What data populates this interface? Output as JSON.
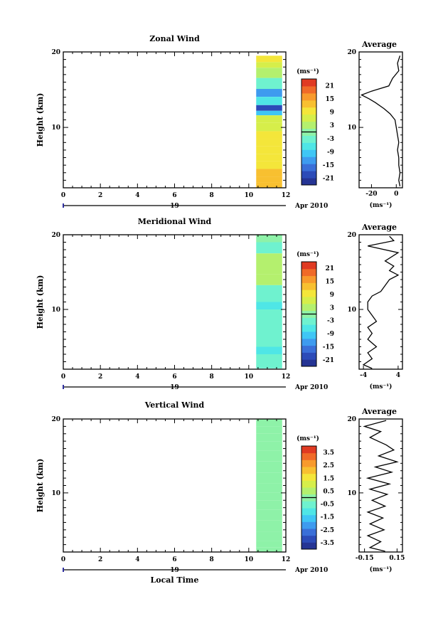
{
  "panels": [
    {
      "title": "Zonal Wind",
      "ylabel": "Height (km)",
      "yticks": [
        "20",
        "10"
      ],
      "xticks": [
        "0",
        "2",
        "4",
        "6",
        "8",
        "10",
        "12"
      ],
      "date_day": "19",
      "date_month": "Apr 2010",
      "colorbar_unit": "(ms⁻¹)",
      "colorbar_ticks": [
        "21",
        "15",
        "9",
        "3",
        "-3",
        "-9",
        "-15",
        "-21"
      ],
      "average_title": "Average",
      "average_yticks": [
        "20",
        "10"
      ],
      "average_xticks": [
        "-20",
        "0"
      ],
      "average_unit": "(ms⁻¹)"
    },
    {
      "title": "Meridional Wind",
      "ylabel": "Height (km)",
      "yticks": [
        "20",
        "10"
      ],
      "xticks": [
        "0",
        "2",
        "4",
        "6",
        "8",
        "10",
        "12"
      ],
      "date_day": "19",
      "date_month": "Apr 2010",
      "colorbar_unit": "(ms⁻¹)",
      "colorbar_ticks": [
        "21",
        "15",
        "9",
        "3",
        "-3",
        "-9",
        "-15",
        "-21"
      ],
      "average_title": "Average",
      "average_yticks": [
        "20",
        "10"
      ],
      "average_xticks": [
        "-4",
        "4"
      ],
      "average_unit": "(ms⁻¹)"
    },
    {
      "title": "Vertical Wind",
      "ylabel": "Height (km)",
      "yticks": [
        "20",
        "10"
      ],
      "xticks": [
        "0",
        "2",
        "4",
        "6",
        "8",
        "10",
        "12"
      ],
      "date_day": "19",
      "date_month": "Apr 2010",
      "colorbar_unit": "(ms⁻¹)",
      "colorbar_ticks": [
        "3.5",
        "2.5",
        "1.5",
        "0.5",
        "-0.5",
        "-1.5",
        "-2.5",
        "-3.5"
      ],
      "average_title": "Average",
      "average_yticks": [
        "20",
        "10"
      ],
      "average_xticks": [
        "-0.15",
        "0.15"
      ],
      "average_unit": "(ms⁻¹)",
      "xlabel": "Local Time"
    }
  ],
  "colors": {
    "scale": [
      "#253494",
      "#2c4bb8",
      "#3a6fd8",
      "#3e9bef",
      "#3fc6f5",
      "#4fe6e6",
      "#6ff2cf",
      "#8ef2a8",
      "#b4f06e",
      "#d6ee4a",
      "#f4e63a",
      "#f8c030",
      "#f89a2c",
      "#f06a28",
      "#e03a22"
    ],
    "ink": "#000000"
  },
  "chart_data": [
    {
      "type": "heatmap",
      "title": "Zonal Wind",
      "ylabel": "Height (km)",
      "xlabel": "",
      "xlim": [
        0,
        12
      ],
      "ylim": [
        2,
        20
      ],
      "data_window_hours": [
        10.4,
        11.8
      ],
      "colorbar_range": [
        -24,
        24
      ],
      "rows": [
        {
          "z": 19.0,
          "v": 8
        },
        {
          "z": 18.3,
          "v": 6
        },
        {
          "z": 17.5,
          "v": 4
        },
        {
          "z": 15.6,
          "v": -2
        },
        {
          "z": 14.6,
          "v": -12
        },
        {
          "z": 13.5,
          "v": -5
        },
        {
          "z": 12.4,
          "v": -20
        },
        {
          "z": 12.0,
          "v": -10
        },
        {
          "z": 11.2,
          "v": 6
        },
        {
          "z": 10.0,
          "v": 7
        },
        {
          "z": 9.0,
          "v": 8
        },
        {
          "z": 8.0,
          "v": 9
        },
        {
          "z": 7.0,
          "v": 10
        },
        {
          "z": 6.0,
          "v": 11
        },
        {
          "z": 5.0,
          "v": 11
        },
        {
          "z": 4.0,
          "v": 12
        },
        {
          "z": 3.0,
          "v": 12
        },
        {
          "z": 2.4,
          "v": 13
        }
      ],
      "average_profile": {
        "xlim": [
          -30,
          5
        ],
        "ylim": [
          2,
          20
        ],
        "points": [
          {
            "z": 19.5,
            "v": 3
          },
          {
            "z": 18.5,
            "v": 1
          },
          {
            "z": 17.5,
            "v": 2
          },
          {
            "z": 16.5,
            "v": -3
          },
          {
            "z": 15.5,
            "v": -6
          },
          {
            "z": 14.8,
            "v": -20
          },
          {
            "z": 14.3,
            "v": -28
          },
          {
            "z": 13.8,
            "v": -22
          },
          {
            "z": 13.3,
            "v": -17
          },
          {
            "z": 12.5,
            "v": -10
          },
          {
            "z": 11.8,
            "v": -5
          },
          {
            "z": 11.0,
            "v": -1
          },
          {
            "z": 10.0,
            "v": 0
          },
          {
            "z": 9.0,
            "v": 1
          },
          {
            "z": 8.0,
            "v": 2
          },
          {
            "z": 7.0,
            "v": 1
          },
          {
            "z": 6.0,
            "v": 2
          },
          {
            "z": 5.0,
            "v": 2
          },
          {
            "z": 4.0,
            "v": 3
          },
          {
            "z": 3.0,
            "v": 2
          },
          {
            "z": 2.2,
            "v": 3
          }
        ]
      }
    },
    {
      "type": "heatmap",
      "title": "Meridional Wind",
      "ylabel": "Height (km)",
      "xlabel": "",
      "xlim": [
        0,
        12
      ],
      "ylim": [
        2,
        20
      ],
      "data_window_hours": [
        10.4,
        11.8
      ],
      "colorbar_range": [
        -24,
        24
      ],
      "rows": [
        {
          "z": 19.5,
          "v": 0
        },
        {
          "z": 18.5,
          "v": -2
        },
        {
          "z": 16.5,
          "v": 4
        },
        {
          "z": 15.5,
          "v": 2
        },
        {
          "z": 14.0,
          "v": 3
        },
        {
          "z": 12.5,
          "v": -3
        },
        {
          "z": 11.5,
          "v": -4
        },
        {
          "z": 10.5,
          "v": -5
        },
        {
          "z": 9.5,
          "v": -4
        },
        {
          "z": 8.5,
          "v": -3
        },
        {
          "z": 7.5,
          "v": -4
        },
        {
          "z": 6.5,
          "v": -3
        },
        {
          "z": 5.5,
          "v": -4
        },
        {
          "z": 4.5,
          "v": -6
        },
        {
          "z": 3.5,
          "v": -3
        },
        {
          "z": 2.5,
          "v": -4
        }
      ],
      "average_profile": {
        "xlim": [
          -5,
          5
        ],
        "ylim": [
          2,
          20
        ],
        "points": [
          {
            "z": 19.8,
            "v": 2
          },
          {
            "z": 19.2,
            "v": 3
          },
          {
            "z": 18.5,
            "v": -3
          },
          {
            "z": 17.6,
            "v": 4
          },
          {
            "z": 16.5,
            "v": 1
          },
          {
            "z": 15.8,
            "v": 3
          },
          {
            "z": 15.2,
            "v": 2
          },
          {
            "z": 14.6,
            "v": 4
          },
          {
            "z": 14.0,
            "v": 2
          },
          {
            "z": 13.2,
            "v": 1
          },
          {
            "z": 12.4,
            "v": 0
          },
          {
            "z": 11.8,
            "v": -2
          },
          {
            "z": 11.0,
            "v": -3
          },
          {
            "z": 10.0,
            "v": -3
          },
          {
            "z": 9.2,
            "v": -2
          },
          {
            "z": 8.4,
            "v": -1
          },
          {
            "z": 7.6,
            "v": -3
          },
          {
            "z": 6.8,
            "v": -2
          },
          {
            "z": 6.0,
            "v": -3
          },
          {
            "z": 5.0,
            "v": -1
          },
          {
            "z": 4.2,
            "v": -3
          },
          {
            "z": 3.4,
            "v": -2
          },
          {
            "z": 2.6,
            "v": -4
          },
          {
            "z": 2.1,
            "v": -2
          }
        ]
      }
    },
    {
      "type": "heatmap",
      "title": "Vertical Wind",
      "ylabel": "Height (km)",
      "xlabel": "Local Time",
      "xlim": [
        0,
        12
      ],
      "ylim": [
        2,
        20
      ],
      "data_window_hours": [
        10.4,
        11.8
      ],
      "colorbar_range": [
        -4,
        4
      ],
      "rows": [
        {
          "z": 19.5,
          "v": -0.2
        },
        {
          "z": 18.5,
          "v": 0.1
        },
        {
          "z": 17.5,
          "v": -0.1
        },
        {
          "z": 16.5,
          "v": 0.0
        },
        {
          "z": 15.0,
          "v": 0.2
        },
        {
          "z": 13.5,
          "v": 0.1
        },
        {
          "z": 12.0,
          "v": 0.0
        },
        {
          "z": 10.5,
          "v": -0.1
        },
        {
          "z": 9.5,
          "v": 0.0
        },
        {
          "z": 8.5,
          "v": -0.2
        },
        {
          "z": 7.0,
          "v": 0.1
        },
        {
          "z": 5.5,
          "v": -0.1
        },
        {
          "z": 4.0,
          "v": 0.0
        },
        {
          "z": 3.0,
          "v": 0.1
        },
        {
          "z": 2.3,
          "v": 0.2
        }
      ],
      "average_profile": {
        "xlim": [
          -0.2,
          0.2
        ],
        "ylim": [
          2,
          20
        ],
        "points": [
          {
            "z": 19.8,
            "v": 0.05
          },
          {
            "z": 19.0,
            "v": -0.15
          },
          {
            "z": 18.3,
            "v": 0.0
          },
          {
            "z": 17.5,
            "v": -0.1
          },
          {
            "z": 16.5,
            "v": 0.05
          },
          {
            "z": 15.8,
            "v": 0.12
          },
          {
            "z": 15.0,
            "v": -0.02
          },
          {
            "z": 14.2,
            "v": 0.15
          },
          {
            "z": 13.5,
            "v": -0.05
          },
          {
            "z": 12.8,
            "v": 0.1
          },
          {
            "z": 12.0,
            "v": -0.12
          },
          {
            "z": 11.2,
            "v": 0.08
          },
          {
            "z": 10.5,
            "v": -0.1
          },
          {
            "z": 9.8,
            "v": 0.06
          },
          {
            "z": 9.0,
            "v": -0.08
          },
          {
            "z": 8.2,
            "v": 0.04
          },
          {
            "z": 7.4,
            "v": -0.12
          },
          {
            "z": 6.6,
            "v": 0.02
          },
          {
            "z": 5.8,
            "v": -0.1
          },
          {
            "z": 5.0,
            "v": 0.03
          },
          {
            "z": 4.2,
            "v": -0.12
          },
          {
            "z": 3.4,
            "v": 0.0
          },
          {
            "z": 2.6,
            "v": -0.1
          },
          {
            "z": 2.1,
            "v": 0.04
          }
        ]
      }
    }
  ]
}
